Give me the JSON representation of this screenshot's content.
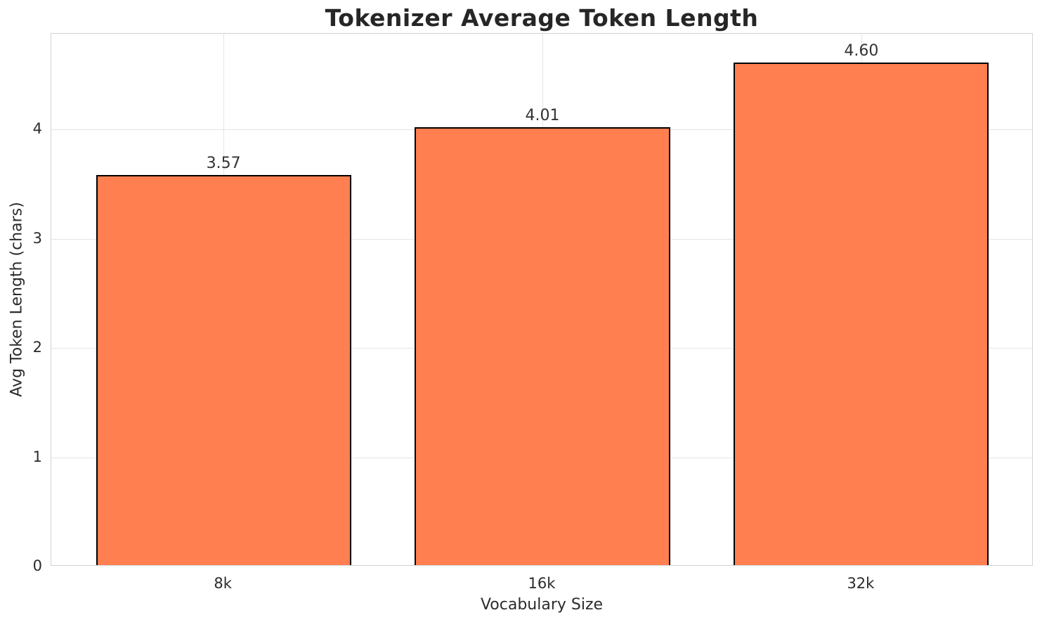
{
  "figure": {
    "background": "#ffffff"
  },
  "chart_data": {
    "type": "bar",
    "title": "Tokenizer Average Token Length",
    "xlabel": "Vocabulary Size",
    "ylabel": "Avg Token Length (chars)",
    "categories": [
      "8k",
      "16k",
      "32k"
    ],
    "values": [
      3.57,
      4.01,
      4.6
    ],
    "value_labels": [
      "3.57",
      "4.01",
      "4.60"
    ],
    "yticks": [
      "0",
      "1",
      "2",
      "3",
      "4"
    ],
    "ylim": [
      0,
      4.875
    ],
    "grid": true,
    "legend_position": "none",
    "colors": {
      "bar_fill": "#FF7F50",
      "bar_edge": "#000000",
      "grid_line": "#e4e4e4",
      "spine": "#d2d2d2",
      "title_text": "#262626",
      "tick_text": "#2b2b2b",
      "axis_label_text": "#2b2b2b",
      "value_label_text": "#333333"
    }
  }
}
